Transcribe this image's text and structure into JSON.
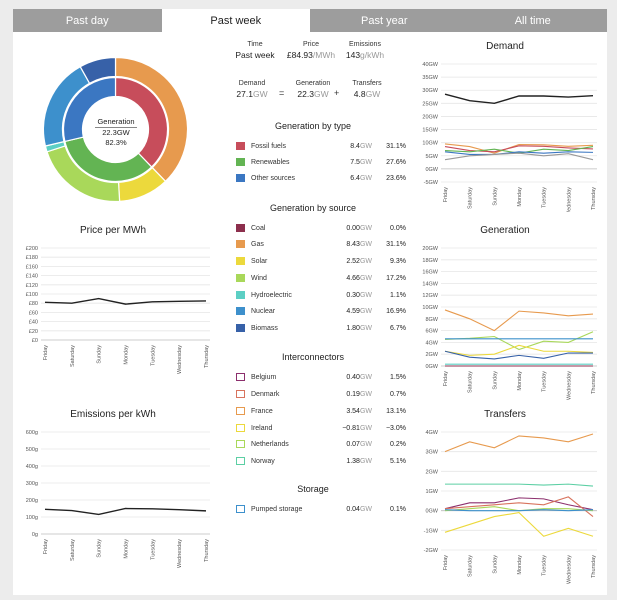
{
  "tabs": [
    {
      "label": "Past day",
      "active": false
    },
    {
      "label": "Past week",
      "active": true
    },
    {
      "label": "Past year",
      "active": false
    },
    {
      "label": "All time",
      "active": false
    }
  ],
  "donut": {
    "label": "Generation",
    "value": "22.3GW",
    "percent": "82.3%",
    "inner": [
      {
        "name": "Fossil fuels",
        "share": 31.1,
        "color": "#c74d5b"
      },
      {
        "name": "Renewables",
        "share": 27.6,
        "color": "#63b453"
      },
      {
        "name": "Other sources",
        "share": 23.6,
        "color": "#3b77c2"
      }
    ],
    "outer": [
      {
        "name": "Gas",
        "share": 31.1,
        "color": "#e79a4e"
      },
      {
        "name": "Solar",
        "share": 9.3,
        "color": "#ecd93c"
      },
      {
        "name": "Wind",
        "share": 17.2,
        "color": "#a9d85a"
      },
      {
        "name": "Hydroelectric",
        "share": 1.1,
        "color": "#5ccfc4"
      },
      {
        "name": "Nuclear",
        "share": 16.9,
        "color": "#3d90cc"
      },
      {
        "name": "Biomass",
        "share": 6.7,
        "color": "#3761a8"
      }
    ]
  },
  "summary": {
    "time_label": "Time",
    "time_value": "Past week",
    "price_label": "Price",
    "price_value": "£84.93",
    "price_unit": "/MWh",
    "emissions_label": "Emissions",
    "emissions_value": "143",
    "emissions_unit": "g/kWh",
    "demand_label": "Demand",
    "demand_value": "27.1",
    "demand_unit": "GW",
    "generation_label": "Generation",
    "generation_value": "22.3",
    "generation_unit": "GW",
    "transfers_label": "Transfers",
    "transfers_value": "4.8",
    "transfers_unit": "GW",
    "equals": "=",
    "plus": "+"
  },
  "by_type": {
    "title": "Generation by type",
    "rows": [
      {
        "label": "Fossil fuels",
        "value": "8.4",
        "unit": "GW",
        "pct": "31.1%",
        "color": "#c74d5b"
      },
      {
        "label": "Renewables",
        "value": "7.5",
        "unit": "GW",
        "pct": "27.6%",
        "color": "#63b453"
      },
      {
        "label": "Other sources",
        "value": "6.4",
        "unit": "GW",
        "pct": "23.6%",
        "color": "#3b77c2"
      }
    ]
  },
  "by_source": {
    "title": "Generation by source",
    "rows": [
      {
        "label": "Coal",
        "value": "0.00",
        "unit": "GW",
        "pct": "0.0%",
        "color": "#8c2f4d"
      },
      {
        "label": "Gas",
        "value": "8.43",
        "unit": "GW",
        "pct": "31.1%",
        "color": "#e79a4e"
      },
      {
        "label": "Solar",
        "value": "2.52",
        "unit": "GW",
        "pct": "9.3%",
        "color": "#ecd93c"
      },
      {
        "label": "Wind",
        "value": "4.66",
        "unit": "GW",
        "pct": "17.2%",
        "color": "#a9d85a"
      },
      {
        "label": "Hydroelectric",
        "value": "0.30",
        "unit": "GW",
        "pct": "1.1%",
        "color": "#5ccfc4"
      },
      {
        "label": "Nuclear",
        "value": "4.59",
        "unit": "GW",
        "pct": "16.9%",
        "color": "#3d90cc"
      },
      {
        "label": "Biomass",
        "value": "1.80",
        "unit": "GW",
        "pct": "6.7%",
        "color": "#3761a8"
      }
    ]
  },
  "interconnectors": {
    "title": "Interconnectors",
    "rows": [
      {
        "label": "Belgium",
        "value": "0.40",
        "unit": "GW",
        "pct": "1.5%",
        "color": "#8c2f6d"
      },
      {
        "label": "Denmark",
        "value": "0.19",
        "unit": "GW",
        "pct": "0.7%",
        "color": "#d8735d"
      },
      {
        "label": "France",
        "value": "3.54",
        "unit": "GW",
        "pct": "13.1%",
        "color": "#e79a4e"
      },
      {
        "label": "Ireland",
        "value": "−0.81",
        "unit": "GW",
        "pct": "−3.0%",
        "color": "#ecd93c"
      },
      {
        "label": "Netherlands",
        "value": "0.07",
        "unit": "GW",
        "pct": "0.2%",
        "color": "#a9d85a"
      },
      {
        "label": "Norway",
        "value": "1.38",
        "unit": "GW",
        "pct": "5.1%",
        "color": "#5ccfa4"
      }
    ]
  },
  "storage": {
    "title": "Storage",
    "rows": [
      {
        "label": "Pumped storage",
        "value": "0.04",
        "unit": "GW",
        "pct": "0.1%",
        "color": "#3d90cc"
      }
    ]
  },
  "chart_data": [
    {
      "type": "line",
      "title": "Price per MWh",
      "x": [
        "Friday",
        "Saturday",
        "Sunday",
        "Monday",
        "Tuesday",
        "Wednesday",
        "Thursday"
      ],
      "yticks": [
        "£0",
        "£20",
        "£40",
        "£60",
        "£80",
        "£100",
        "£120",
        "£140",
        "£160",
        "£180",
        "£200"
      ],
      "ylim": [
        0,
        200
      ],
      "series": [
        {
          "values": [
            82,
            80,
            90,
            78,
            83,
            84,
            85
          ],
          "color": "#222222"
        }
      ]
    },
    {
      "type": "line",
      "title": "Emissions per kWh",
      "x": [
        "Friday",
        "Saturday",
        "Sunday",
        "Monday",
        "Tuesday",
        "Wednesday",
        "Thursday"
      ],
      "yticks": [
        "0g",
        "100g",
        "200g",
        "300g",
        "400g",
        "500g",
        "600g"
      ],
      "ylim": [
        0,
        600
      ],
      "series": [
        {
          "values": [
            145,
            138,
            115,
            150,
            148,
            143,
            136
          ],
          "color": "#222222"
        }
      ]
    },
    {
      "type": "line",
      "title": "Demand",
      "x": [
        "Friday",
        "Saturday",
        "Sunday",
        "Monday",
        "Tuesday",
        "Wednesday",
        "Thursday"
      ],
      "yticks": [
        "-5GW",
        "0GW",
        "5GW",
        "10GW",
        "15GW",
        "20GW",
        "25GW",
        "30GW",
        "35GW",
        "40GW"
      ],
      "ylim": [
        -5,
        40
      ],
      "series": [
        {
          "values": [
            28.5,
            26,
            25,
            27.8,
            27.8,
            27.4,
            27.9
          ],
          "color": "#222222"
        },
        {
          "values": [
            9.5,
            8.5,
            6,
            9.3,
            9.2,
            8.6,
            9.0
          ],
          "color": "#e79a4e"
        },
        {
          "values": [
            8.5,
            7,
            6.5,
            8.8,
            8.6,
            8.0,
            7.6
          ],
          "color": "#c74d5b"
        },
        {
          "values": [
            7,
            6.5,
            7.5,
            6,
            7.5,
            7.0,
            8.5
          ],
          "color": "#63b453"
        },
        {
          "values": [
            6.5,
            5.5,
            5.5,
            6.5,
            6.0,
            6.5,
            6.3
          ],
          "color": "#3b77c2"
        },
        {
          "values": [
            3.5,
            5,
            5.5,
            6,
            5,
            5.8,
            3.5
          ],
          "color": "#999999"
        }
      ]
    },
    {
      "type": "line",
      "title": "Generation",
      "x": [
        "Friday",
        "Saturday",
        "Sunday",
        "Monday",
        "Tuesday",
        "Wednesday",
        "Thursday"
      ],
      "yticks": [
        "0GW",
        "2GW",
        "4GW",
        "6GW",
        "8GW",
        "10GW",
        "12GW",
        "14GW",
        "16GW",
        "18GW",
        "20GW"
      ],
      "ylim": [
        0,
        20
      ],
      "series": [
        {
          "values": [
            9.5,
            8.0,
            6.0,
            9.3,
            9.0,
            8.5,
            8.8
          ],
          "color": "#e79a4e"
        },
        {
          "values": [
            4.5,
            4.7,
            5.0,
            2.8,
            4.2,
            4.0,
            5.8
          ],
          "color": "#a9d85a"
        },
        {
          "values": [
            4.6,
            4.6,
            4.6,
            4.6,
            4.6,
            4.6,
            4.6
          ],
          "color": "#3d90cc"
        },
        {
          "values": [
            2.5,
            1.8,
            2.0,
            3.5,
            2.5,
            2.5,
            2.3
          ],
          "color": "#ecd93c"
        },
        {
          "values": [
            2.5,
            1.5,
            1.2,
            1.8,
            1.3,
            2.2,
            2.2
          ],
          "color": "#3761a8"
        },
        {
          "values": [
            0.3,
            0.3,
            0.3,
            0.3,
            0.3,
            0.3,
            0.3
          ],
          "color": "#5ccfc4"
        },
        {
          "values": [
            0,
            0,
            0,
            0,
            0,
            0,
            0
          ],
          "color": "#8c2f4d"
        }
      ]
    },
    {
      "type": "line",
      "title": "Transfers",
      "x": [
        "Friday",
        "Saturday",
        "Sunday",
        "Monday",
        "Tuesday",
        "Wednesday",
        "Thursday"
      ],
      "yticks": [
        "-2GW",
        "-1GW",
        "0GW",
        "1GW",
        "2GW",
        "3GW",
        "4GW"
      ],
      "ylim": [
        -2,
        4
      ],
      "series": [
        {
          "values": [
            3.0,
            3.5,
            3.2,
            3.8,
            3.7,
            3.5,
            3.9
          ],
          "color": "#e79a4e"
        },
        {
          "values": [
            1.35,
            1.35,
            1.35,
            1.35,
            1.3,
            1.35,
            1.25
          ],
          "color": "#5ccfa4"
        },
        {
          "values": [
            0.1,
            0.4,
            0.4,
            0.65,
            0.6,
            0.3,
            0.05
          ],
          "color": "#8c2f6d"
        },
        {
          "values": [
            0.1,
            0.2,
            0.3,
            0.4,
            0.3,
            0.7,
            -0.3
          ],
          "color": "#d8735d"
        },
        {
          "values": [
            0.0,
            0.1,
            0.2,
            0.0,
            0.1,
            0.1,
            0.0
          ],
          "color": "#a9d85a"
        },
        {
          "values": [
            0.05,
            0.0,
            0.0,
            0.0,
            0.05,
            0.0,
            0.05
          ],
          "color": "#3d90cc"
        },
        {
          "values": [
            -1.1,
            -0.7,
            -0.3,
            -0.1,
            -1.3,
            -0.9,
            -1.3
          ],
          "color": "#ecd93c"
        }
      ]
    }
  ]
}
